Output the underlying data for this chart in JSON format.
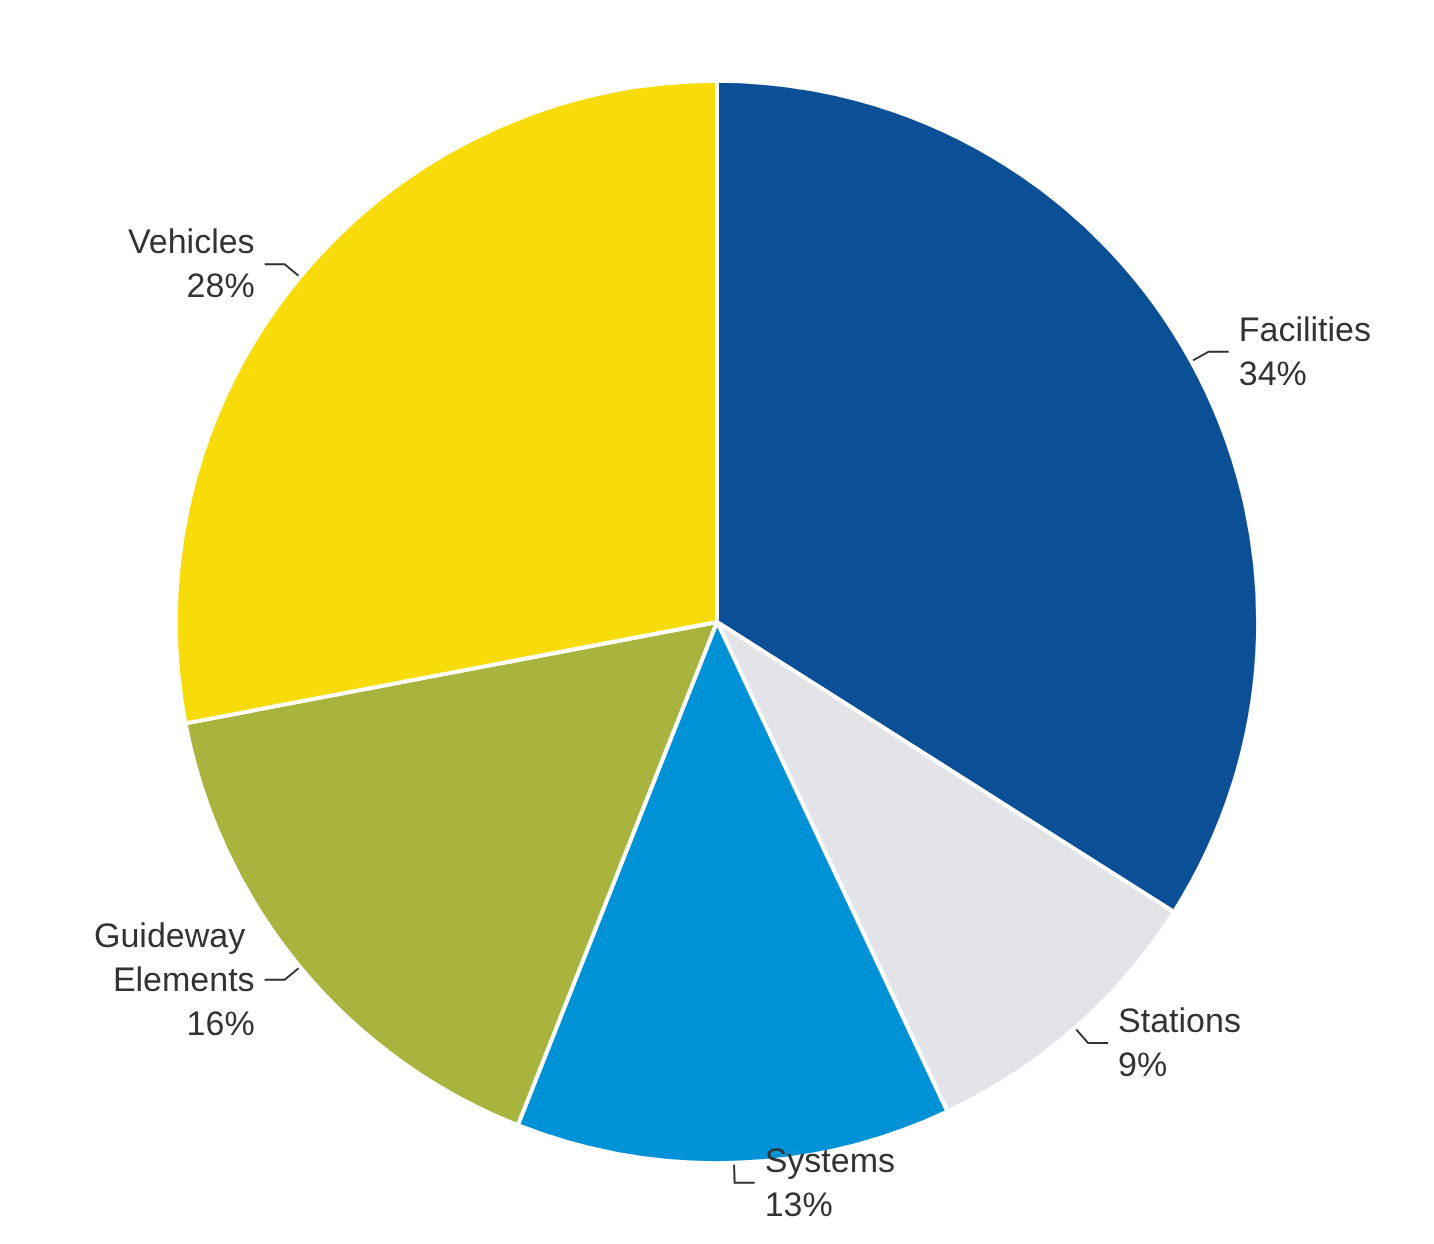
{
  "chart_data": {
    "type": "pie",
    "categories": [
      "Facilities",
      "Stations",
      "Systems",
      "Guideway Elements",
      "Vehicles"
    ],
    "values": [
      34,
      9,
      13,
      16,
      28
    ],
    "colors": [
      "#0b4f96",
      "#e2e4e8",
      "#0092d6",
      "#a8b43e",
      "#f7dc0a"
    ],
    "value_labels": [
      "34%",
      "9%",
      "13%",
      "16%",
      "28%"
    ],
    "legend": false
  }
}
